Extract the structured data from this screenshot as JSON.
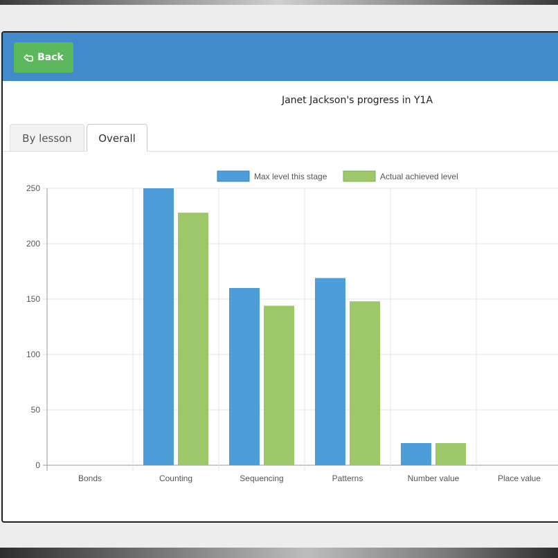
{
  "header": {
    "back_label": "Back",
    "back_icon": "hand-pointing-left-icon",
    "background": "#428bca",
    "button_color": "#5cb85c"
  },
  "page": {
    "title": "Janet Jackson's progress in Y1A"
  },
  "tabs": [
    {
      "label": "By lesson",
      "active": false
    },
    {
      "label": "Overall",
      "active": true
    }
  ],
  "chart_data": {
    "type": "bar",
    "categories": [
      "Bonds",
      "Counting",
      "Sequencing",
      "Patterns",
      "Number value",
      "Place value"
    ],
    "series": [
      {
        "name": "Max level this stage",
        "color": "#4d9ed8",
        "values": [
          0,
          250,
          160,
          169,
          20,
          0
        ]
      },
      {
        "name": "Actual achieved level",
        "color": "#9dc86a",
        "values": [
          0,
          228,
          144,
          148,
          20,
          0
        ]
      }
    ],
    "ylim": [
      0,
      250
    ],
    "yticks": [
      0,
      50,
      100,
      150,
      200,
      250
    ],
    "grid": true,
    "legend": "top"
  }
}
